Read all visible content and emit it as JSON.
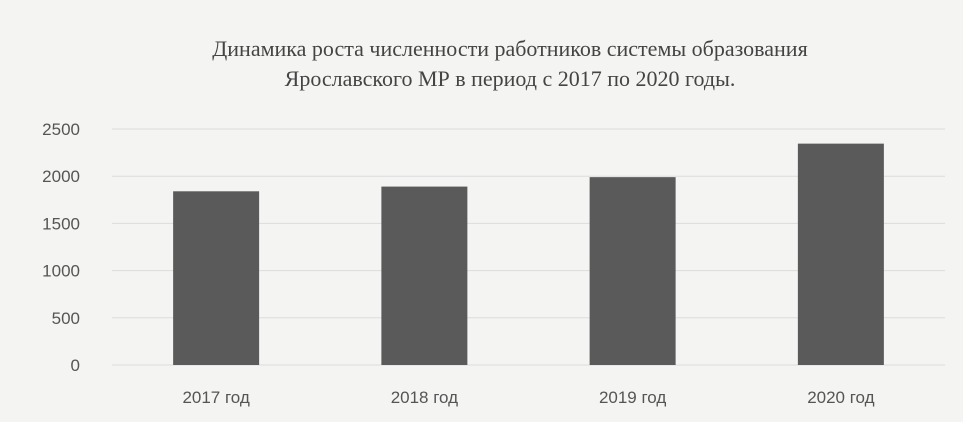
{
  "chart_data": {
    "type": "bar",
    "title_line1": "Динамика роста численности работников системы образования",
    "title_line2": "Ярославского МР в период с 2017 по 2020 годы.",
    "categories": [
      "2017 год",
      "2018 год",
      "2019 год",
      "2020 год"
    ],
    "values": [
      1840,
      1890,
      1990,
      2345
    ],
    "y_ticks": [
      "0",
      "500",
      "1000",
      "1500",
      "2000",
      "2500"
    ],
    "ylim": [
      0,
      2500
    ],
    "grid": true,
    "legend": "none",
    "bar_color": "#5a5a5a",
    "grid_color": "#dcdcdc",
    "text_color": "#555555"
  }
}
